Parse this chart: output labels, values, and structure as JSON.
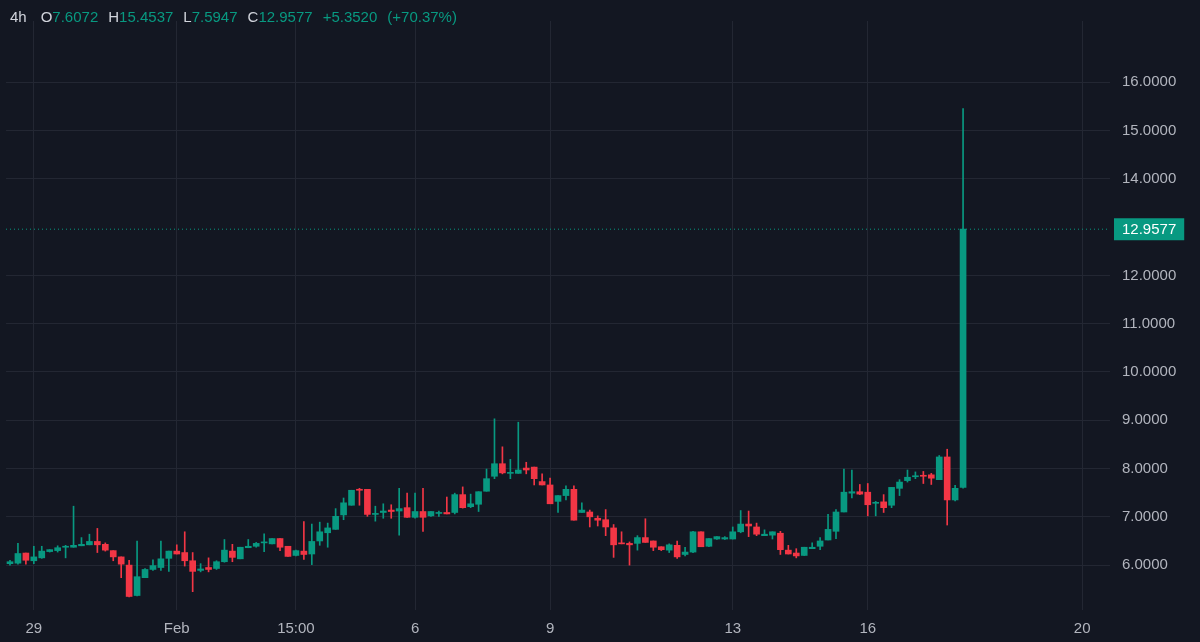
{
  "chart_data": {
    "type": "candlestick",
    "title": "4h",
    "subtitle": "O7.6072 H15.4537 L7.5947 C12.9577 +5.3520 (+70.37%)",
    "categories": [
      null,
      null,
      null,
      "29",
      null,
      null,
      null,
      null,
      null,
      null,
      null,
      null,
      null,
      null,
      null,
      null,
      null,
      null,
      null,
      null,
      null,
      "Feb",
      null,
      null,
      null,
      null,
      null,
      null,
      null,
      null,
      null,
      null,
      null,
      null,
      null,
      null,
      "15:00",
      null,
      null,
      null,
      null,
      null,
      null,
      null,
      null,
      null,
      null,
      null,
      null,
      null,
      null,
      "6",
      null,
      null,
      null,
      null,
      null,
      null,
      null,
      null,
      null,
      null,
      null,
      null,
      null,
      null,
      null,
      null,
      "9",
      null,
      null,
      null,
      null,
      null,
      null,
      null,
      null,
      null,
      null,
      null,
      null,
      null,
      null,
      null,
      null,
      null,
      null,
      null,
      null,
      null,
      null,
      "13",
      null,
      null,
      null,
      null,
      null,
      null,
      null,
      null,
      null,
      null,
      null,
      null,
      null,
      null,
      null,
      null,
      "16",
      null,
      null,
      null,
      null,
      null,
      null,
      null,
      null,
      null,
      null,
      null,
      null,
      null,
      null,
      null,
      null,
      null,
      null,
      null,
      null,
      null,
      null,
      null,
      null,
      null,
      null,
      "20",
      null,
      null,
      null
    ],
    "ohlc": [
      [
        6.03,
        6.1,
        6.0,
        6.07
      ],
      [
        6.04,
        6.45,
        6.02,
        6.24
      ],
      [
        6.25,
        6.25,
        6.02,
        6.1
      ],
      [
        6.09,
        6.39,
        6.03,
        6.17
      ],
      [
        6.15,
        6.39,
        6.14,
        6.29
      ],
      [
        6.28,
        6.32,
        6.27,
        6.32
      ],
      [
        6.3,
        6.4,
        6.27,
        6.36
      ],
      [
        6.37,
        6.41,
        6.15,
        6.38
      ],
      [
        6.37,
        7.22,
        6.37,
        6.41
      ],
      [
        6.4,
        6.57,
        6.4,
        6.43
      ],
      [
        6.42,
        6.64,
        6.42,
        6.49
      ],
      [
        6.49,
        6.76,
        6.26,
        6.42
      ],
      [
        6.43,
        6.46,
        6.29,
        6.31
      ],
      [
        6.3,
        6.3,
        6.09,
        6.17
      ],
      [
        6.17,
        6.17,
        5.74,
        6.02
      ],
      [
        6.0,
        6.1,
        5.34,
        5.35
      ],
      [
        5.37,
        6.5,
        5.36,
        5.76
      ],
      [
        5.74,
        5.93,
        5.74,
        5.91
      ],
      [
        5.91,
        6.11,
        5.89,
        5.99
      ],
      [
        5.95,
        6.5,
        5.89,
        6.13
      ],
      [
        6.14,
        6.29,
        5.87,
        6.29
      ],
      [
        6.29,
        6.42,
        6.23,
        6.23
      ],
      [
        6.26,
        6.69,
        5.98,
        6.09
      ],
      [
        6.09,
        6.26,
        5.45,
        5.87
      ],
      [
        5.89,
        6.03,
        5.86,
        5.92
      ],
      [
        5.95,
        6.15,
        5.86,
        5.91
      ],
      [
        5.93,
        6.09,
        5.91,
        6.07
      ],
      [
        6.07,
        6.53,
        6.06,
        6.31
      ],
      [
        6.29,
        6.43,
        6.07,
        6.16
      ],
      [
        6.13,
        6.37,
        6.13,
        6.37
      ],
      [
        6.36,
        6.53,
        6.36,
        6.39
      ],
      [
        6.39,
        6.47,
        6.37,
        6.45
      ],
      [
        6.46,
        6.65,
        6.28,
        6.47
      ],
      [
        6.44,
        6.55,
        6.44,
        6.55
      ],
      [
        6.55,
        6.55,
        6.3,
        6.37
      ],
      [
        6.39,
        6.39,
        6.18,
        6.18
      ],
      [
        6.2,
        6.31,
        6.19,
        6.3
      ],
      [
        6.29,
        6.9,
        6.12,
        6.22
      ],
      [
        6.23,
        6.85,
        6.01,
        6.49
      ],
      [
        6.5,
        6.89,
        6.41,
        6.69
      ],
      [
        6.67,
        6.87,
        6.37,
        6.77
      ],
      [
        6.74,
        7.17,
        6.74,
        7.01
      ],
      [
        7.04,
        7.39,
        6.94,
        7.29
      ],
      [
        7.24,
        7.55,
        7.24,
        7.55
      ],
      [
        7.57,
        7.59,
        7.24,
        7.55
      ],
      [
        7.57,
        7.57,
        7.01,
        7.05
      ],
      [
        7.05,
        7.22,
        6.91,
        7.06
      ],
      [
        7.09,
        7.27,
        6.97,
        7.12
      ],
      [
        7.14,
        7.25,
        6.97,
        7.11
      ],
      [
        7.12,
        7.59,
        6.62,
        7.17
      ],
      [
        7.19,
        7.49,
        6.99,
        6.99
      ],
      [
        6.99,
        7.49,
        6.97,
        7.11
      ],
      [
        7.11,
        7.59,
        6.7,
        6.99
      ],
      [
        7.02,
        7.11,
        7.01,
        7.11
      ],
      [
        7.07,
        7.12,
        7.01,
        7.08
      ],
      [
        7.09,
        7.41,
        7.06,
        7.06
      ],
      [
        7.09,
        7.49,
        7.06,
        7.46
      ],
      [
        7.46,
        7.62,
        7.18,
        7.19
      ],
      [
        7.21,
        7.47,
        7.19,
        7.27
      ],
      [
        7.26,
        7.52,
        7.11,
        7.52
      ],
      [
        7.53,
        7.99,
        7.53,
        7.79
      ],
      [
        7.84,
        9.03,
        7.79,
        8.1
      ],
      [
        8.1,
        8.45,
        7.89,
        7.91
      ],
      [
        7.9,
        8.19,
        7.79,
        7.91
      ],
      [
        7.9,
        8.96,
        7.9,
        7.97
      ],
      [
        8.01,
        8.13,
        7.89,
        7.97
      ],
      [
        8.03,
        8.03,
        7.66,
        7.79
      ],
      [
        7.73,
        7.89,
        7.66,
        7.66
      ],
      [
        7.66,
        7.8,
        7.27,
        7.27
      ],
      [
        7.32,
        7.44,
        7.09,
        7.44
      ],
      [
        7.44,
        7.64,
        7.35,
        7.57
      ],
      [
        7.57,
        7.64,
        6.93,
        6.93
      ],
      [
        7.09,
        7.29,
        7.09,
        7.14
      ],
      [
        7.1,
        7.14,
        6.79,
        7.0
      ],
      [
        6.97,
        7.02,
        6.81,
        6.93
      ],
      [
        6.94,
        7.15,
        6.61,
        6.79
      ],
      [
        6.77,
        6.84,
        6.16,
        6.42
      ],
      [
        6.46,
        6.69,
        6.44,
        6.44
      ],
      [
        6.45,
        6.48,
        6.0,
        6.42
      ],
      [
        6.45,
        6.61,
        6.31,
        6.57
      ],
      [
        6.57,
        6.96,
        6.47,
        6.47
      ],
      [
        6.5,
        6.5,
        6.3,
        6.37
      ],
      [
        6.38,
        6.38,
        6.3,
        6.32
      ],
      [
        6.31,
        6.44,
        6.26,
        6.42
      ],
      [
        6.41,
        6.5,
        6.14,
        6.17
      ],
      [
        6.22,
        6.37,
        6.19,
        6.27
      ],
      [
        6.27,
        6.7,
        6.26,
        6.69
      ],
      [
        6.69,
        6.69,
        6.38,
        6.38
      ],
      [
        6.39,
        6.55,
        6.38,
        6.55
      ],
      [
        6.54,
        6.59,
        6.53,
        6.59
      ],
      [
        6.54,
        6.59,
        6.53,
        6.57
      ],
      [
        6.54,
        6.79,
        6.54,
        6.69
      ],
      [
        6.69,
        7.13,
        6.67,
        6.85
      ],
      [
        6.85,
        7.12,
        6.59,
        6.81
      ],
      [
        6.79,
        6.87,
        6.61,
        6.64
      ],
      [
        6.61,
        6.73,
        6.61,
        6.64
      ],
      [
        6.62,
        6.69,
        6.54,
        6.69
      ],
      [
        6.66,
        6.7,
        6.22,
        6.32
      ],
      [
        6.31,
        6.41,
        6.23,
        6.23
      ],
      [
        6.25,
        6.34,
        6.15,
        6.19
      ],
      [
        6.2,
        6.37,
        6.2,
        6.37
      ],
      [
        6.34,
        6.46,
        6.34,
        6.37
      ],
      [
        6.39,
        6.57,
        6.32,
        6.5
      ],
      [
        6.52,
        7.05,
        6.52,
        6.74
      ],
      [
        6.7,
        7.15,
        6.55,
        7.1
      ],
      [
        7.1,
        7.99,
        7.1,
        7.51
      ],
      [
        7.49,
        7.97,
        7.39,
        7.52
      ],
      [
        7.52,
        7.67,
        7.46,
        7.47
      ],
      [
        7.51,
        7.69,
        7.02,
        7.25
      ],
      [
        7.28,
        7.32,
        7.02,
        7.29
      ],
      [
        7.31,
        7.46,
        7.09,
        7.19
      ],
      [
        7.24,
        7.61,
        7.19,
        7.61
      ],
      [
        7.59,
        7.77,
        7.44,
        7.72
      ],
      [
        7.75,
        7.97,
        7.72,
        7.82
      ],
      [
        7.83,
        7.93,
        7.79,
        7.84
      ],
      [
        7.85,
        7.94,
        7.69,
        7.84
      ],
      [
        7.87,
        7.9,
        7.67,
        7.8
      ],
      [
        7.77,
        8.27,
        7.77,
        8.24
      ],
      [
        8.24,
        8.4,
        6.83,
        7.35
      ],
      [
        7.35,
        7.65,
        7.33,
        7.59
      ],
      [
        7.6072,
        15.4537,
        7.5947,
        12.9577
      ],
      null,
      null,
      null,
      null,
      null,
      null,
      null,
      null,
      null,
      null,
      null,
      null,
      null,
      null,
      null,
      null,
      null,
      null
    ],
    "colors": [
      "#089981",
      "#089981",
      "#f23645",
      "#089981",
      "#089981",
      "#089981",
      "#089981",
      "#089981",
      "#089981",
      "#089981",
      "#089981",
      "#f23645",
      "#f23645",
      "#f23645",
      "#f23645",
      "#f23645",
      "#089981",
      "#089981",
      "#089981",
      "#089981",
      "#089981",
      "#f23645",
      "#f23645",
      "#f23645",
      "#089981",
      "#f23645",
      "#089981",
      "#089981",
      "#f23645",
      "#089981",
      "#089981",
      "#089981",
      "#089981",
      "#089981",
      "#f23645",
      "#f23645",
      "#089981",
      "#f23645",
      "#089981",
      "#089981",
      "#089981",
      "#089981",
      "#089981",
      "#089981",
      "#f23645",
      "#f23645",
      "#089981",
      "#089981",
      "#f23645",
      "#089981",
      "#f23645",
      "#089981",
      "#f23645",
      "#089981",
      "#089981",
      "#f23645",
      "#089981",
      "#f23645",
      "#089981",
      "#089981",
      "#089981",
      "#089981",
      "#f23645",
      "#089981",
      "#089981",
      "#f23645",
      "#f23645",
      "#f23645",
      "#f23645",
      "#089981",
      "#089981",
      "#f23645",
      "#089981",
      "#f23645",
      "#f23645",
      "#f23645",
      "#f23645",
      "#f23645",
      "#f23645",
      "#089981",
      "#f23645",
      "#f23645",
      "#f23645",
      "#089981",
      "#f23645",
      "#089981",
      "#089981",
      "#f23645",
      "#089981",
      "#089981",
      "#089981",
      "#089981",
      "#089981",
      "#f23645",
      "#f23645",
      "#089981",
      "#089981",
      "#f23645",
      "#f23645",
      "#f23645",
      "#089981",
      "#089981",
      "#089981",
      "#089981",
      "#089981",
      "#089981",
      "#089981",
      "#f23645",
      "#f23645",
      "#089981",
      "#f23645",
      "#089981",
      "#089981",
      "#089981",
      "#089981",
      "#f23645",
      "#f23645",
      "#089981",
      "#f23645",
      "#089981",
      "#089981",
      null,
      null,
      null,
      null,
      null,
      null,
      null,
      null,
      null,
      null,
      null,
      null,
      null,
      null,
      null,
      null,
      null,
      null
    ],
    "ylim": [
      5.07,
      17.27
    ],
    "yticks": [
      {
        "value": 6,
        "label": "6.0000"
      },
      {
        "value": 7,
        "label": "7.0000"
      },
      {
        "value": 8,
        "label": "8.0000"
      },
      {
        "value": 9,
        "label": "9.0000"
      },
      {
        "value": 10,
        "label": "10.0000"
      },
      {
        "value": 11,
        "label": "11.0000"
      },
      {
        "value": 12,
        "label": "12.0000"
      },
      {
        "value": 14,
        "label": "14.0000"
      },
      {
        "value": 15,
        "label": "15.0000"
      },
      {
        "value": 16,
        "label": "16.0000"
      }
    ],
    "ref_lines": [
      {
        "axis": "y",
        "value": 12.9577,
        "label": "12.9577",
        "color": "#089981",
        "line_style": "dotted"
      }
    ],
    "grid": true,
    "legend": false
  }
}
